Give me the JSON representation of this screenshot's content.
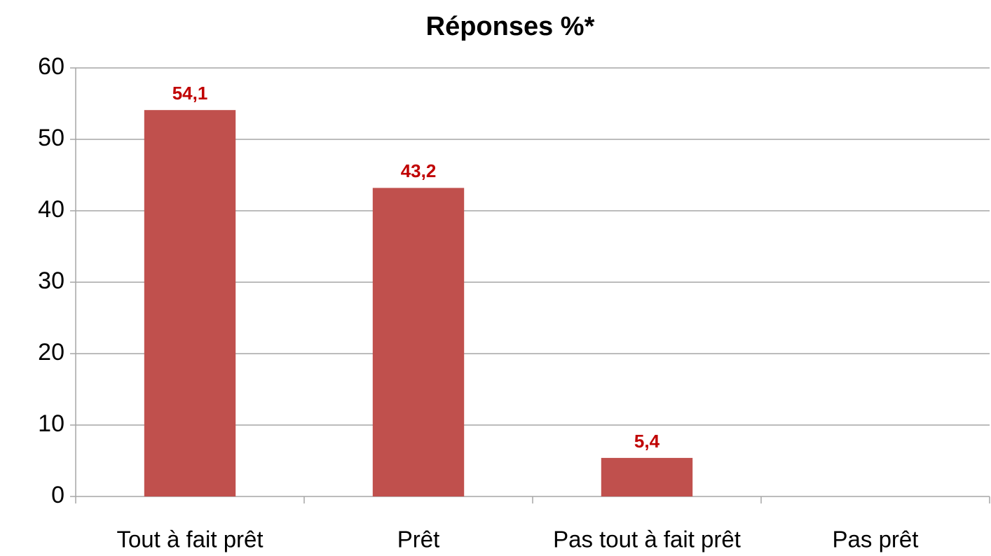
{
  "chart_data": {
    "type": "bar",
    "title": "Réponses %*",
    "categories": [
      "Tout à fait prêt",
      "Prêt",
      "Pas tout à fait prêt",
      "Pas prêt"
    ],
    "values": [
      54.1,
      43.2,
      5.4,
      null
    ],
    "value_labels": [
      "54,1",
      "43,2",
      "5,4",
      null
    ],
    "color": "#c0504d",
    "label_color": "#c00000",
    "ylim": [
      0,
      60
    ],
    "yticks": [
      0,
      10,
      20,
      30,
      40,
      50,
      60
    ],
    "grid": true
  }
}
